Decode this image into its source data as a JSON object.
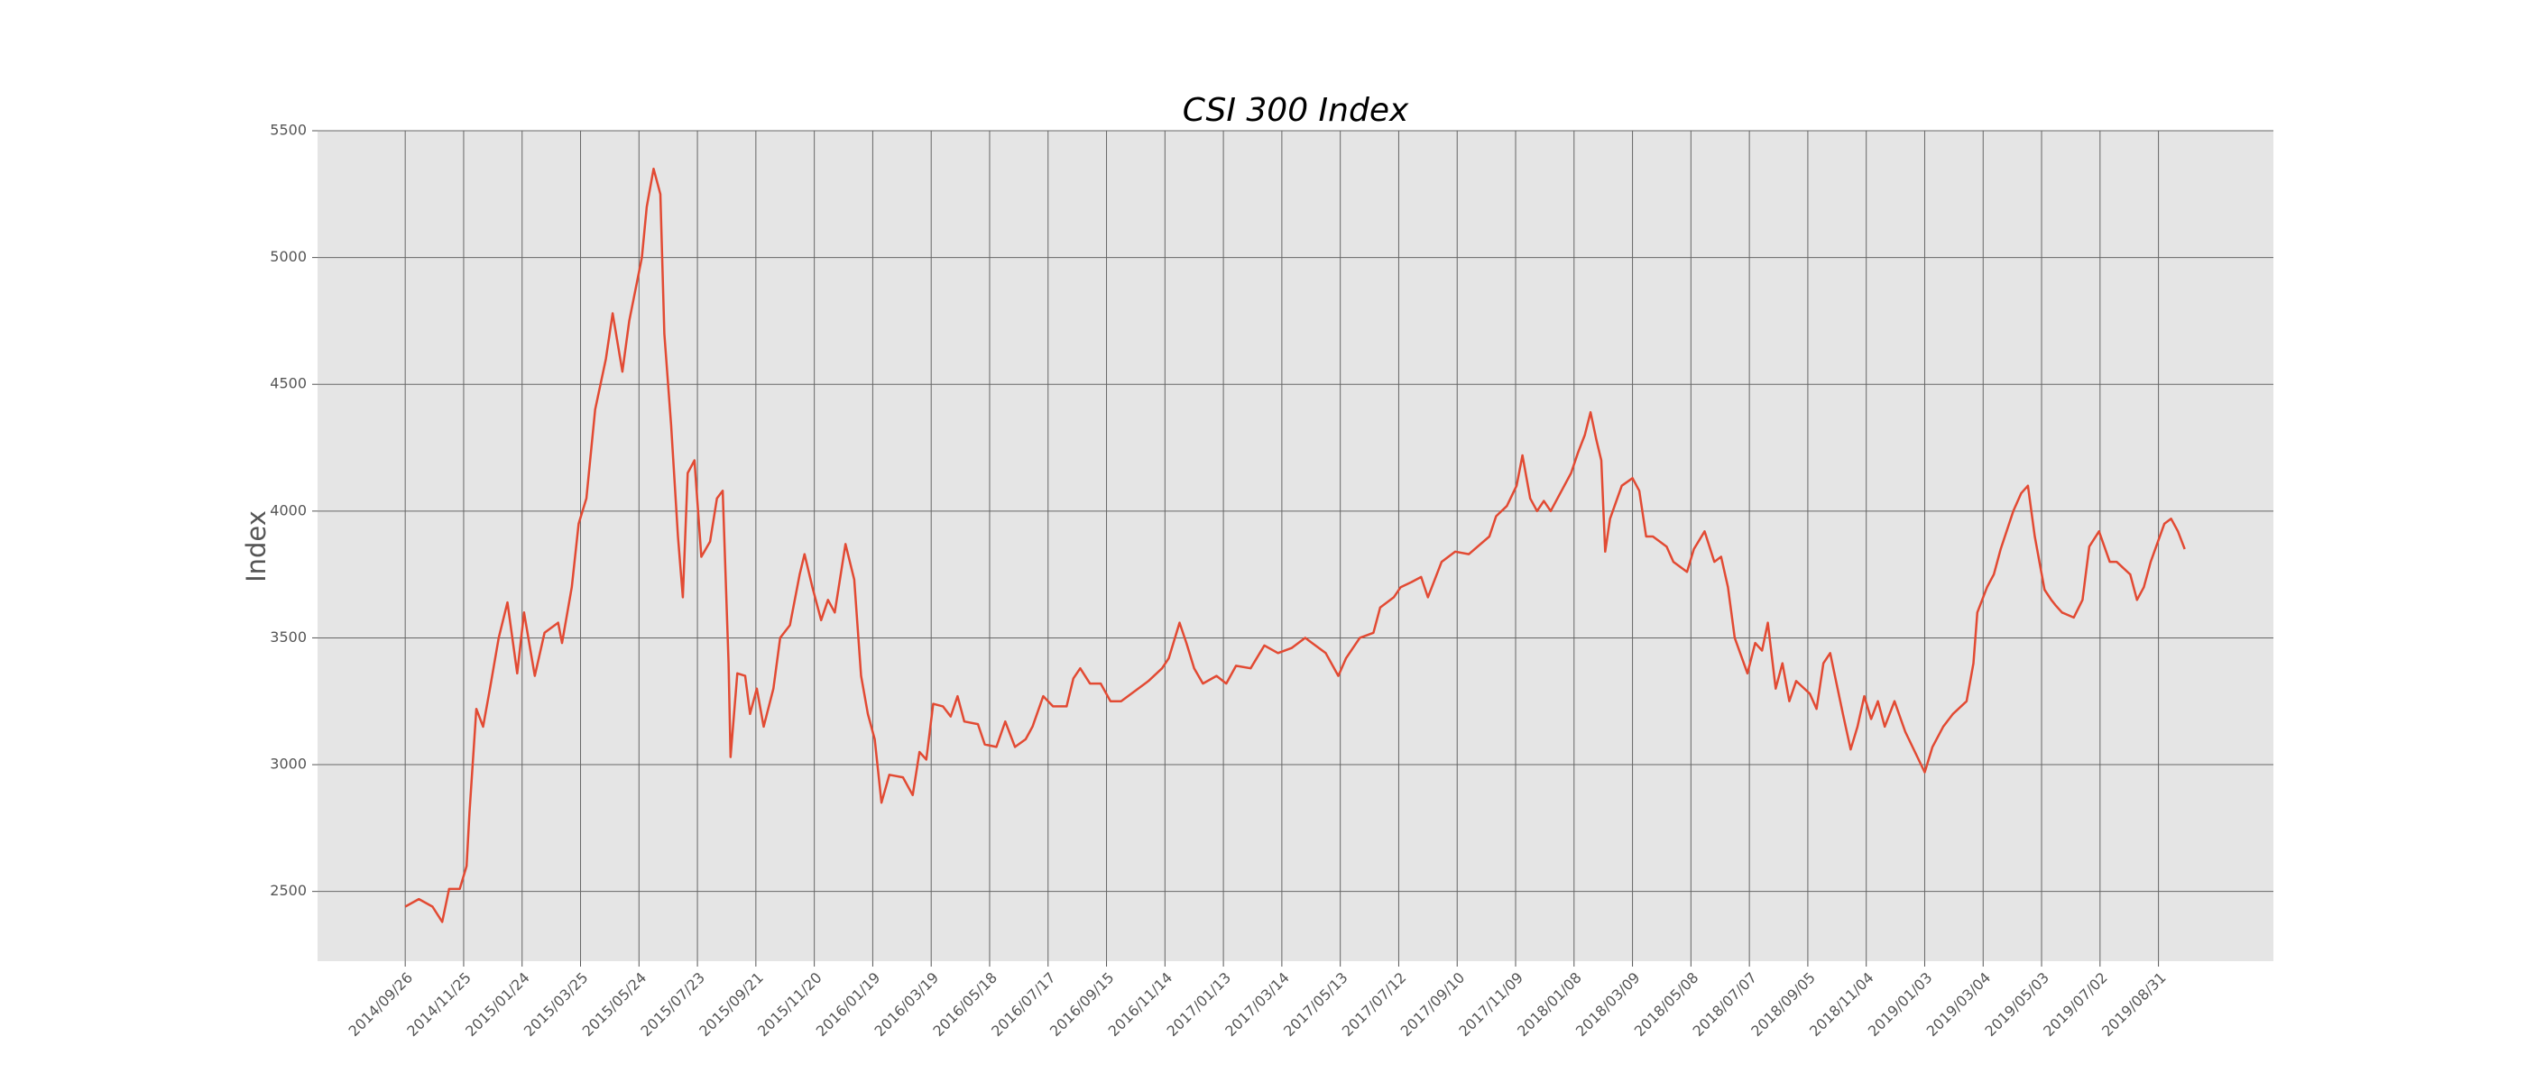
{
  "chart_data": {
    "type": "line",
    "title": "CSI 300 Index",
    "ylabel": "Index",
    "color": "#e24a33",
    "grid": true,
    "xlim": [
      "2014/06/28",
      "2019/12/27"
    ],
    "ylim": [
      2225,
      5500
    ],
    "yticks": [
      2500,
      3000,
      3500,
      4000,
      4500,
      5000,
      5500
    ],
    "xticks": [
      "2014/09/26",
      "2014/11/25",
      "2015/01/24",
      "2015/03/25",
      "2015/05/24",
      "2015/07/23",
      "2015/09/21",
      "2015/11/20",
      "2016/01/19",
      "2016/03/19",
      "2016/05/18",
      "2016/07/17",
      "2016/09/15",
      "2016/11/14",
      "2017/01/13",
      "2017/03/14",
      "2017/05/13",
      "2017/07/12",
      "2017/09/10",
      "2017/11/09",
      "2018/01/08",
      "2018/03/09",
      "2018/05/08",
      "2018/07/07",
      "2018/09/05",
      "2018/11/04",
      "2019/01/03",
      "2019/03/04",
      "2019/05/03",
      "2019/07/02",
      "2019/08/31"
    ],
    "x": [
      "2014/09/26",
      "2014/10/10",
      "2014/10/24",
      "2014/11/03",
      "2014/11/10",
      "2014/11/21",
      "2014/11/28",
      "2014/12/01",
      "2014/12/08",
      "2014/12/15",
      "2014/12/22",
      "2014/12/31",
      "2015/01/09",
      "2015/01/19",
      "2015/01/26",
      "2015/02/06",
      "2015/02/16",
      "2015/03/02",
      "2015/03/06",
      "2015/03/16",
      "2015/03/23",
      "2015/03/31",
      "2015/04/09",
      "2015/04/20",
      "2015/04/27",
      "2015/05/07",
      "2015/05/14",
      "2015/05/27",
      "2015/06/01",
      "2015/06/08",
      "2015/06/15",
      "2015/06/19",
      "2015/06/26",
      "2015/07/03",
      "2015/07/08",
      "2015/07/13",
      "2015/07/20",
      "2015/07/27",
      "2015/08/05",
      "2015/08/12",
      "2015/08/18",
      "2015/08/24",
      "2015/08/26",
      "2015/09/02",
      "2015/09/10",
      "2015/09/15",
      "2015/09/22",
      "2015/09/29",
      "2015/10/09",
      "2015/10/16",
      "2015/10/26",
      "2015/11/05",
      "2015/11/10",
      "2015/11/18",
      "2015/11/27",
      "2015/12/04",
      "2015/12/11",
      "2015/12/22",
      "2015/12/31",
      "2016/01/07",
      "2016/01/14",
      "2016/01/21",
      "2016/01/28",
      "2016/02/05",
      "2016/02/19",
      "2016/02/29",
      "2016/03/07",
      "2016/03/14",
      "2016/03/21",
      "2016/03/31",
      "2016/04/08",
      "2016/04/15",
      "2016/04/22",
      "2016/05/06",
      "2016/05/13",
      "2016/05/25",
      "2016/06/03",
      "2016/06/13",
      "2016/06/24",
      "2016/07/01",
      "2016/07/12",
      "2016/07/22",
      "2016/08/05",
      "2016/08/12",
      "2016/08/19",
      "2016/08/29",
      "2016/09/09",
      "2016/09/19",
      "2016/09/30",
      "2016/10/14",
      "2016/10/28",
      "2016/11/11",
      "2016/11/18",
      "2016/11/29",
      "2016/12/06",
      "2016/12/14",
      "2016/12/23",
      "2017/01/06",
      "2017/01/16",
      "2017/01/26",
      "2017/02/10",
      "2017/02/24",
      "2017/03/10",
      "2017/03/24",
      "2017/04/07",
      "2017/04/14",
      "2017/04/28",
      "2017/05/11",
      "2017/05/19",
      "2017/06/02",
      "2017/06/16",
      "2017/06/23",
      "2017/07/07",
      "2017/07/14",
      "2017/07/25",
      "2017/08/04",
      "2017/08/11",
      "2017/08/25",
      "2017/09/08",
      "2017/09/22",
      "2017/10/13",
      "2017/10/20",
      "2017/10/31",
      "2017/11/10",
      "2017/11/16",
      "2017/11/24",
      "2017/12/01",
      "2017/12/08",
      "2017/12/15",
      "2017/12/22",
      "2018/01/05",
      "2018/01/12",
      "2018/01/19",
      "2018/01/25",
      "2018/01/31",
      "2018/02/05",
      "2018/02/09",
      "2018/02/14",
      "2018/02/26",
      "2018/03/09",
      "2018/03/16",
      "2018/03/23",
      "2018/03/30",
      "2018/04/13",
      "2018/04/20",
      "2018/05/04",
      "2018/05/11",
      "2018/05/22",
      "2018/06/01",
      "2018/06/08",
      "2018/06/15",
      "2018/06/22",
      "2018/07/05",
      "2018/07/13",
      "2018/07/20",
      "2018/07/26",
      "2018/08/03",
      "2018/08/10",
      "2018/08/17",
      "2018/08/24",
      "2018/09/07",
      "2018/09/14",
      "2018/09/21",
      "2018/09/28",
      "2018/10/11",
      "2018/10/19",
      "2018/10/26",
      "2018/11/02",
      "2018/11/09",
      "2018/11/16",
      "2018/11/23",
      "2018/12/03",
      "2018/12/14",
      "2018/12/24",
      "2019/01/03",
      "2019/01/11",
      "2019/01/22",
      "2019/02/01",
      "2019/02/15",
      "2019/02/22",
      "2019/02/26",
      "2019/03/08",
      "2019/03/15",
      "2019/03/22",
      "2019/04/04",
      "2019/04/12",
      "2019/04/19",
      "2019/04/26",
      "2019/05/06",
      "2019/05/13",
      "2019/05/17",
      "2019/05/24",
      "2019/06/05",
      "2019/06/14",
      "2019/06/21",
      "2019/07/01",
      "2019/07/12",
      "2019/07/19",
      "2019/08/02",
      "2019/08/09",
      "2019/08/16",
      "2019/08/23",
      "2019/09/06",
      "2019/09/13",
      "2019/09/20",
      "2019/09/27"
    ],
    "values": [
      2440,
      2470,
      2440,
      2380,
      2510,
      2510,
      2600,
      2810,
      3220,
      3150,
      3300,
      3500,
      3640,
      3360,
      3600,
      3350,
      3520,
      3560,
      3480,
      3700,
      3950,
      4050,
      4400,
      4600,
      4780,
      4550,
      4750,
      5000,
      5200,
      5350,
      5250,
      4700,
      4340,
      3900,
      3660,
      4150,
      4200,
      3820,
      3880,
      4050,
      4080,
      3400,
      3030,
      3360,
      3350,
      3200,
      3300,
      3150,
      3300,
      3500,
      3550,
      3750,
      3830,
      3700,
      3570,
      3650,
      3600,
      3870,
      3730,
      3350,
      3200,
      3100,
      2850,
      2960,
      2950,
      2880,
      3050,
      3020,
      3240,
      3230,
      3190,
      3270,
      3170,
      3160,
      3080,
      3070,
      3170,
      3070,
      3100,
      3150,
      3270,
      3230,
      3230,
      3340,
      3380,
      3320,
      3320,
      3250,
      3250,
      3290,
      3330,
      3380,
      3420,
      3560,
      3480,
      3380,
      3320,
      3350,
      3320,
      3390,
      3380,
      3470,
      3440,
      3460,
      3500,
      3480,
      3440,
      3350,
      3420,
      3500,
      3520,
      3620,
      3660,
      3700,
      3720,
      3740,
      3660,
      3800,
      3840,
      3830,
      3900,
      3980,
      4020,
      4100,
      4220,
      4050,
      4000,
      4040,
      4000,
      4050,
      4150,
      4230,
      4300,
      4390,
      4280,
      4200,
      3840,
      3970,
      4100,
      4130,
      4080,
      3900,
      3900,
      3860,
      3800,
      3760,
      3850,
      3920,
      3800,
      3820,
      3700,
      3500,
      3360,
      3480,
      3450,
      3560,
      3300,
      3400,
      3250,
      3330,
      3280,
      3220,
      3400,
      3440,
      3200,
      3060,
      3150,
      3270,
      3180,
      3250,
      3150,
      3250,
      3130,
      3050,
      2970,
      3070,
      3150,
      3200,
      3250,
      3400,
      3600,
      3700,
      3750,
      3850,
      4000,
      4070,
      4100,
      3900,
      3690,
      3650,
      3630,
      3600,
      3580,
      3650,
      3860,
      3920,
      3800,
      3800,
      3750,
      3650,
      3700,
      3800,
      3950,
      3970,
      3920,
      3850
    ]
  }
}
